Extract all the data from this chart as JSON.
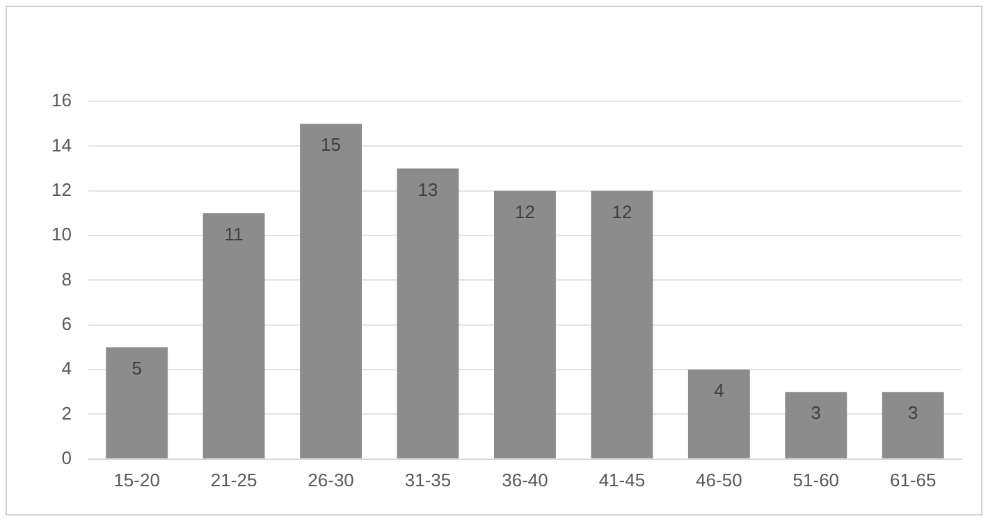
{
  "chart_data": {
    "type": "bar",
    "categories": [
      "15-20",
      "21-25",
      "26-30",
      "31-35",
      "36-40",
      "41-45",
      "46-50",
      "51-60",
      "61-65"
    ],
    "values": [
      5,
      11,
      15,
      13,
      12,
      12,
      4,
      3,
      3
    ],
    "color": "#8c8c8c",
    "ylim": [
      0,
      16
    ],
    "yticks": [
      0,
      2,
      4,
      6,
      8,
      10,
      12,
      14,
      16
    ],
    "grid": "y",
    "data_labels": true,
    "legend": false
  }
}
